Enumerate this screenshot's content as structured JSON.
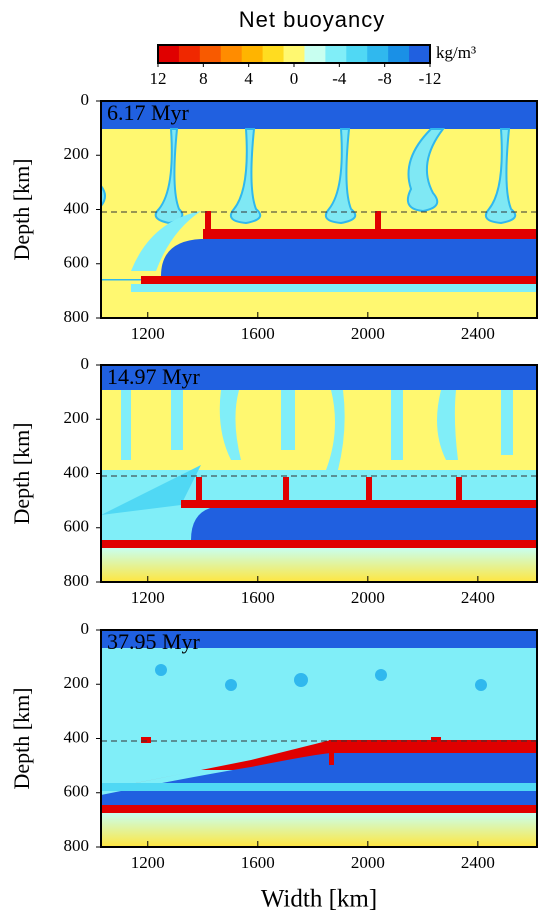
{
  "colorbar": {
    "title": "Net buoyancy",
    "unit": "kg/m³",
    "lim": [
      12,
      -12
    ],
    "ticks": [
      12,
      8,
      4,
      0,
      -4,
      -8,
      -12
    ],
    "colors": [
      "#e00000",
      "#f02800",
      "#f85a00",
      "#ff8c00",
      "#ffb400",
      "#ffdc20",
      "#fff870",
      "#c8fff0",
      "#80eef8",
      "#50d8f4",
      "#30b8ee",
      "#1a90e6",
      "#2060e0"
    ]
  },
  "chart_data": [
    {
      "type": "heatmap",
      "annotation": "6.17 Myr",
      "xlim": [
        1030,
        2615
      ],
      "ylim": [
        0,
        800
      ],
      "y_inverted": true,
      "xticks": [
        1200,
        1600,
        2000,
        2400
      ],
      "yticks": [
        0,
        200,
        400,
        600,
        800
      ],
      "ylabel": "Depth [km]"
    },
    {
      "type": "heatmap",
      "annotation": "14.97 Myr",
      "xlim": [
        1030,
        2615
      ],
      "ylim": [
        0,
        800
      ],
      "y_inverted": true,
      "xticks": [
        1200,
        1600,
        2000,
        2400
      ],
      "yticks": [
        0,
        200,
        400,
        600,
        800
      ],
      "ylabel": "Depth [km]"
    },
    {
      "type": "heatmap",
      "annotation": "37.95 Myr",
      "xlim": [
        1030,
        2615
      ],
      "ylim": [
        0,
        800
      ],
      "y_inverted": true,
      "xticks": [
        1200,
        1600,
        2000,
        2400
      ],
      "yticks": [
        0,
        200,
        400,
        600,
        800
      ],
      "ylabel": "Depth [km]",
      "xlabel": "Width [km]"
    }
  ]
}
